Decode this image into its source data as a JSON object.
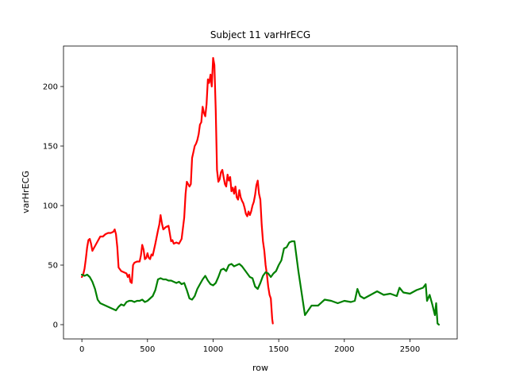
{
  "chart_data": {
    "type": "line",
    "title": "Subject 11 varHrECG",
    "xlabel": "row",
    "ylabel": "varHrECG",
    "xlim": [
      -140,
      2860
    ],
    "ylim": [
      -12,
      234
    ],
    "grid": false,
    "legend": "none",
    "x_ticks": [
      0,
      500,
      1000,
      1500,
      2000,
      2500
    ],
    "x_tick_labels": [
      "0",
      "500",
      "1000",
      "1500",
      "2000",
      "2500"
    ],
    "y_ticks": [
      0,
      50,
      100,
      150,
      200
    ],
    "y_tick_labels": [
      "0",
      "50",
      "100",
      "150",
      "200"
    ],
    "series": [
      {
        "color": "#ff0000",
        "x": [
          0,
          10,
          20,
          30,
          40,
          50,
          60,
          70,
          80,
          90,
          100,
          120,
          140,
          160,
          180,
          200,
          220,
          240,
          250,
          260,
          270,
          280,
          300,
          320,
          340,
          350,
          360,
          370,
          380,
          390,
          400,
          420,
          440,
          450,
          460,
          470,
          480,
          490,
          500,
          510,
          520,
          530,
          540,
          560,
          580,
          590,
          600,
          610,
          620,
          640,
          660,
          680,
          690,
          700,
          720,
          740,
          760,
          780,
          790,
          800,
          810,
          820,
          830,
          840,
          850,
          860,
          870,
          880,
          890,
          900,
          910,
          920,
          930,
          940,
          950,
          960,
          970,
          980,
          990,
          1000,
          1010,
          1020,
          1030,
          1040,
          1050,
          1060,
          1070,
          1080,
          1090,
          1100,
          1110,
          1120,
          1130,
          1140,
          1150,
          1160,
          1170,
          1180,
          1190,
          1200,
          1210,
          1220,
          1230,
          1240,
          1250,
          1260,
          1270,
          1280,
          1290,
          1300,
          1310,
          1320,
          1330,
          1340,
          1350,
          1360,
          1370,
          1380,
          1390,
          1400,
          1410,
          1420,
          1430,
          1440,
          1450,
          1455
        ],
        "y": [
          40,
          42,
          47,
          55,
          65,
          71,
          72,
          68,
          62,
          64,
          66,
          70,
          74,
          74,
          76,
          77,
          77,
          78,
          80,
          76,
          65,
          48,
          45,
          44,
          43,
          40,
          42,
          36,
          35,
          50,
          52,
          53,
          53,
          58,
          67,
          63,
          55,
          56,
          60,
          56,
          55,
          59,
          58,
          68,
          79,
          84,
          92,
          85,
          80,
          82,
          83,
          70,
          71,
          68,
          69,
          68,
          72,
          90,
          110,
          120,
          118,
          116,
          118,
          140,
          145,
          150,
          152,
          155,
          160,
          168,
          170,
          183,
          178,
          175,
          185,
          206,
          203,
          210,
          200,
          224,
          218,
          180,
          130,
          120,
          122,
          128,
          130,
          124,
          118,
          116,
          126,
          121,
          124,
          112,
          115,
          110,
          116,
          107,
          105,
          113,
          107,
          104,
          102,
          98,
          93,
          91,
          95,
          92,
          95,
          100,
          103,
          109,
          117,
          121,
          110,
          105,
          84,
          70,
          62,
          50,
          42,
          32,
          25,
          22,
          5,
          1
        ]
      },
      {
        "color": "#008000",
        "x": [
          0,
          20,
          40,
          60,
          80,
          100,
          120,
          140,
          160,
          180,
          200,
          220,
          240,
          260,
          280,
          300,
          320,
          340,
          360,
          380,
          400,
          420,
          440,
          460,
          480,
          500,
          520,
          540,
          560,
          580,
          600,
          620,
          640,
          660,
          680,
          700,
          720,
          740,
          760,
          780,
          800,
          820,
          840,
          860,
          880,
          900,
          920,
          940,
          960,
          980,
          1000,
          1020,
          1040,
          1060,
          1080,
          1100,
          1120,
          1140,
          1160,
          1180,
          1200,
          1220,
          1240,
          1260,
          1280,
          1300,
          1320,
          1340,
          1360,
          1380,
          1400,
          1420,
          1440,
          1460,
          1480,
          1500,
          1520,
          1540,
          1560,
          1580,
          1600,
          1620,
          1650,
          1700,
          1750,
          1800,
          1850,
          1900,
          1950,
          2000,
          2050,
          2080,
          2100,
          2120,
          2150,
          2200,
          2250,
          2300,
          2350,
          2400,
          2420,
          2450,
          2500,
          2550,
          2600,
          2620,
          2630,
          2650,
          2670,
          2690,
          2700,
          2710,
          2720
        ],
        "y": [
          42,
          41,
          42,
          40,
          36,
          30,
          21,
          18,
          17,
          16,
          15,
          14,
          13,
          12,
          15,
          17,
          16,
          19,
          20,
          20,
          19,
          20,
          20,
          21,
          19,
          20,
          22,
          24,
          29,
          38,
          39,
          38,
          38,
          37,
          37,
          36,
          35,
          36,
          34,
          35,
          29,
          22,
          21,
          24,
          30,
          34,
          38,
          41,
          37,
          34,
          33,
          35,
          40,
          46,
          47,
          45,
          50,
          51,
          49,
          50,
          51,
          49,
          46,
          43,
          40,
          39,
          32,
          30,
          35,
          41,
          44,
          43,
          40,
          43,
          45,
          50,
          54,
          64,
          65,
          69,
          70,
          70,
          45,
          8,
          16,
          16,
          21,
          20,
          18,
          20,
          19,
          20,
          30,
          24,
          22,
          25,
          28,
          25,
          26,
          24,
          31,
          27,
          26,
          29,
          31,
          34,
          20,
          25,
          17,
          8,
          18,
          1,
          0
        ]
      }
    ]
  }
}
